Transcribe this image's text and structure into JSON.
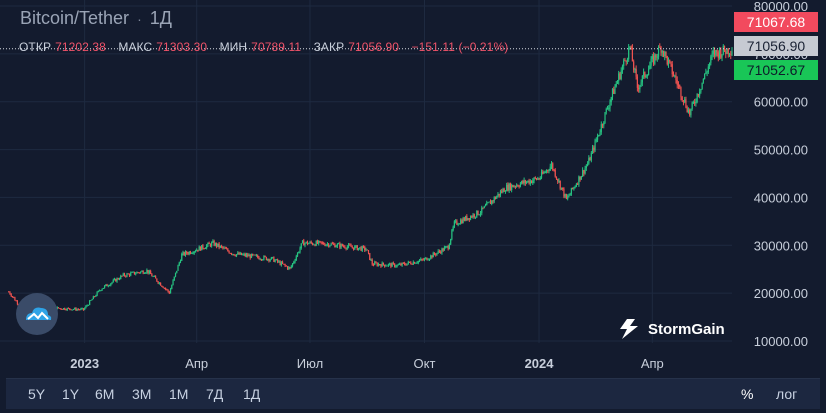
{
  "header": {
    "title": "Bitcoin/Tether",
    "separator": "·",
    "interval": "1Д"
  },
  "ohlc": {
    "open_label": "ОТКР",
    "open_value": "71202.38",
    "high_label": "МАКС",
    "high_value": "71303.30",
    "low_label": "МИН",
    "low_value": "70789.11",
    "close_label": "ЗАКР",
    "close_value": "71056.90",
    "change": "−151.11 (−0.21%)"
  },
  "price_tags": {
    "high": "71067.68",
    "last": "71056.90",
    "low": "71052.67"
  },
  "brand": {
    "name": "StormGain"
  },
  "toolbar": {
    "ranges": [
      "5Y",
      "1Y",
      "6M",
      "3M",
      "1M",
      "7Д",
      "1Д"
    ],
    "percent": "%",
    "log": "лог"
  },
  "colors": {
    "background": "#131b2e",
    "up": "#26c281",
    "down": "#ef5350",
    "high_tag": "#f24a5e",
    "last_tag": "#c6cad2",
    "low_tag": "#19c657"
  },
  "chart_data": {
    "type": "candlestick",
    "title": "Bitcoin/Tether",
    "ylim": [
      10000,
      80000
    ],
    "y_ticks": [
      "80000.00",
      "70000.00",
      "60000.00",
      "50000.00",
      "40000.00",
      "30000.00",
      "20000.00",
      "10000.00"
    ],
    "x_ticks": [
      "2023",
      "Апр",
      "Июл",
      "Окт",
      "2024",
      "Апр"
    ],
    "x_tick_dates": [
      "2023-01-01",
      "2023-04-01",
      "2023-07-01",
      "2023-10-01",
      "2024-01-01",
      "2024-04-01"
    ],
    "x_range": [
      "2022-10-25",
      "2024-06-04"
    ],
    "grid": true,
    "last_price_line": 71056.9,
    "close_path": [
      {
        "date": "2022-11-01",
        "close": 20300
      },
      {
        "date": "2022-11-10",
        "close": 17300
      },
      {
        "date": "2022-12-01",
        "close": 17000
      },
      {
        "date": "2022-12-31",
        "close": 16550
      },
      {
        "date": "2023-01-14",
        "close": 20900
      },
      {
        "date": "2023-02-01",
        "close": 23700
      },
      {
        "date": "2023-02-20",
        "close": 24700
      },
      {
        "date": "2023-03-10",
        "close": 20100
      },
      {
        "date": "2023-03-20",
        "close": 28000
      },
      {
        "date": "2023-04-14",
        "close": 30400
      },
      {
        "date": "2023-05-01",
        "close": 28200
      },
      {
        "date": "2023-06-01",
        "close": 27100
      },
      {
        "date": "2023-06-15",
        "close": 25100
      },
      {
        "date": "2023-06-25",
        "close": 30500
      },
      {
        "date": "2023-07-15",
        "close": 30300
      },
      {
        "date": "2023-08-15",
        "close": 29200
      },
      {
        "date": "2023-08-20",
        "close": 26100
      },
      {
        "date": "2023-09-10",
        "close": 25800
      },
      {
        "date": "2023-10-01",
        "close": 27000
      },
      {
        "date": "2023-10-20",
        "close": 29700
      },
      {
        "date": "2023-10-25",
        "close": 34500
      },
      {
        "date": "2023-11-15",
        "close": 37000
      },
      {
        "date": "2023-12-05",
        "close": 42000
      },
      {
        "date": "2024-01-01",
        "close": 44000
      },
      {
        "date": "2024-01-11",
        "close": 46800
      },
      {
        "date": "2024-01-23",
        "close": 39500
      },
      {
        "date": "2024-02-10",
        "close": 47500
      },
      {
        "date": "2024-02-28",
        "close": 61000
      },
      {
        "date": "2024-03-14",
        "close": 71400
      },
      {
        "date": "2024-03-20",
        "close": 63000
      },
      {
        "date": "2024-04-08",
        "close": 71500
      },
      {
        "date": "2024-04-20",
        "close": 64500
      },
      {
        "date": "2024-05-01",
        "close": 57500
      },
      {
        "date": "2024-05-20",
        "close": 70000
      },
      {
        "date": "2024-06-04",
        "close": 71056.9
      }
    ]
  }
}
